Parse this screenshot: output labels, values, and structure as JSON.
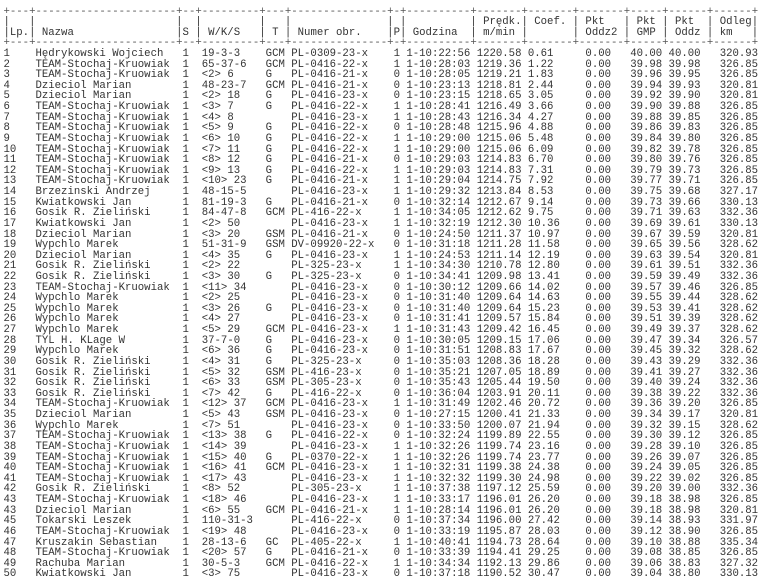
{
  "table": {
    "header_line1": [
      "",
      "",
      "",
      "",
      "",
      "",
      "",
      "",
      "Prędk.",
      "Coef.",
      "Pkt",
      "Pkt",
      "Pkt",
      "Odleg"
    ],
    "header_line2": [
      "Lp.",
      "Nazwa",
      "S",
      "W/K/S",
      "T",
      "Numer obr.",
      "P",
      "Godzina",
      "m/min",
      "",
      "Oddz2",
      "GMP",
      "Oddz",
      "km"
    ],
    "rows": [
      [
        "1",
        "Hędrykowski Wojciech",
        "1",
        "19-3-3",
        "GCM",
        "PL-0309-23-x",
        "1",
        "1-10:22:56",
        "1220.58",
        "0.61",
        "0.00",
        "40.00",
        "40.00",
        "320.93"
      ],
      [
        "2",
        "TEAM-Stochaj-Kruowiak",
        "1",
        "65-37-6",
        "GCM",
        "PL-0416-22-x",
        "1",
        "1-10:28:03",
        "1219.36",
        "1.22",
        "0.00",
        "39.98",
        "39.98",
        "326.85"
      ],
      [
        "3",
        "TEAM-Stochaj-Kruowiak",
        "1",
        "<2> 6",
        "G",
        "PL-0416-21-x",
        "0",
        "1-10:28:05",
        "1219.21",
        "1.83",
        "0.00",
        "39.96",
        "39.95",
        "326.85"
      ],
      [
        "4",
        "Dzieciol Marian",
        "1",
        "48-23-7",
        "GCM",
        "PL-0416-21-x",
        "0",
        "1-10:23:13",
        "1218.81",
        "2.44",
        "0.00",
        "39.94",
        "39.93",
        "320.81"
      ],
      [
        "5",
        "Dzieciol Marian",
        "1",
        "<2> 18",
        "G",
        "PL-0416-23-x",
        "0",
        "1-10:23:15",
        "1218.65",
        "3.05",
        "0.00",
        "39.92",
        "39.90",
        "320.81"
      ],
      [
        "6",
        "TEAM-Stochaj-Kruowiak",
        "1",
        "<3> 7",
        "G",
        "PL-0416-22-x",
        "1",
        "1-10:28:41",
        "1216.49",
        "3.66",
        "0.00",
        "39.90",
        "39.88",
        "326.85"
      ],
      [
        "7",
        "TEAM-Stochaj-Kruowiak",
        "1",
        "<4> 8",
        "",
        "PL-0416-23-x",
        "1",
        "1-10:28:43",
        "1216.34",
        "4.27",
        "0.00",
        "39.88",
        "39.85",
        "326.85"
      ],
      [
        "8",
        "TEAM-Stochaj-Kruowiak",
        "1",
        "<5> 9",
        "G",
        "PL-0416-22-x",
        "0",
        "1-10:28:48",
        "1215.96",
        "4.88",
        "0.00",
        "39.86",
        "39.83",
        "326.85"
      ],
      [
        "9",
        "TEAM-Stochaj-Kruowiak",
        "1",
        "<6> 10",
        "G",
        "PL-0416-22-x",
        "1",
        "1-10:29:00",
        "1215.06",
        "5.48",
        "0.00",
        "39.84",
        "39.80",
        "326.85"
      ],
      [
        "10",
        "TEAM-Stochaj-Kruowiak",
        "1",
        "<7> 11",
        "G",
        "PL-0416-22-x",
        "1",
        "1-10:29:00",
        "1215.06",
        "6.09",
        "0.00",
        "39.82",
        "39.78",
        "326.85"
      ],
      [
        "11",
        "TEAM-Stochaj-Kruowiak",
        "1",
        "<8> 12",
        "G",
        "PL-0416-21-x",
        "0",
        "1-10:29:03",
        "1214.83",
        "6.70",
        "0.00",
        "39.80",
        "39.76",
        "326.85"
      ],
      [
        "12",
        "TEAM-Stochaj-Kruowiak",
        "1",
        "<9> 13",
        "G",
        "PL-0416-22-x",
        "1",
        "1-10:29:03",
        "1214.83",
        "7.31",
        "0.00",
        "39.79",
        "39.73",
        "326.85"
      ],
      [
        "13",
        "TEAM-Stochaj-Kruowiak",
        "1",
        "<10> 23",
        "G",
        "PL-0416-21-x",
        "1",
        "1-10:29:04",
        "1214.75",
        "7.92",
        "0.00",
        "39.77",
        "39.71",
        "326.85"
      ],
      [
        "14",
        "Brzezinski Andrzej",
        "1",
        "48-15-5",
        "",
        "PL-0416-23-x",
        "1",
        "1-10:29:32",
        "1213.84",
        "8.53",
        "0.00",
        "39.75",
        "39.68",
        "327.17"
      ],
      [
        "15",
        "Kwiatkowski Jan",
        "1",
        "81-19-3",
        "G",
        "PL-0416-21-x",
        "0",
        "1-10:32:14",
        "1212.67",
        "9.14",
        "0.00",
        "39.73",
        "39.66",
        "330.13"
      ],
      [
        "16",
        "Gosik R. Zieliński",
        "1",
        "84-47-8",
        "GCM",
        "PL-416-22-x",
        "1",
        "1-10:34:05",
        "1212.62",
        "9.75",
        "0.00",
        "39.71",
        "39.63",
        "332.36"
      ],
      [
        "17",
        "Kwiatkowski Jan",
        "1",
        "<2> 50",
        "",
        "PL-0416-23-x",
        "1",
        "1-10:32:19",
        "1212.30",
        "10.36",
        "0.00",
        "39.69",
        "39.61",
        "330.13"
      ],
      [
        "18",
        "Dzieciol Marian",
        "1",
        "<3> 20",
        "GSM",
        "PL-0416-21-x",
        "0",
        "1-10:24:50",
        "1211.37",
        "10.97",
        "0.00",
        "39.67",
        "39.59",
        "320.81"
      ],
      [
        "19",
        "Wypchlo Marek",
        "1",
        "51-31-9",
        "GSM",
        "DV-09920-22-x",
        "0",
        "1-10:31:18",
        "1211.28",
        "11.58",
        "0.00",
        "39.65",
        "39.56",
        "328.62"
      ],
      [
        "20",
        "Dzieciol Marian",
        "1",
        "<4> 35",
        "G",
        "PL-0416-23-x",
        "1",
        "1-10:24:53",
        "1211.14",
        "12.19",
        "0.00",
        "39.63",
        "39.54",
        "320.81"
      ],
      [
        "21",
        "Gosik R. Zieliński",
        "1",
        "<2> 22",
        "",
        "PL-325-23-x",
        "1",
        "1-10:34:30",
        "1210.78",
        "12.80",
        "0.00",
        "39.61",
        "39.51",
        "332.36"
      ],
      [
        "22",
        "Gosik R. Zieliński",
        "1",
        "<3> 30",
        "G",
        "PL-325-23-x",
        "0",
        "1-10:34:41",
        "1209.98",
        "13.41",
        "0.00",
        "39.59",
        "39.49",
        "332.36"
      ],
      [
        "23",
        "TEAM-Stochaj-Kruowiak",
        "1",
        "<11> 34",
        "",
        "PL-0416-23-x",
        "0",
        "1-10:30:12",
        "1209.66",
        "14.02",
        "0.00",
        "39.57",
        "39.46",
        "326.85"
      ],
      [
        "24",
        "Wypchlo Marek",
        "1",
        "<2> 25",
        "",
        "PL-0416-23-x",
        "0",
        "1-10:31:40",
        "1209.64",
        "14.63",
        "0.00",
        "39.55",
        "39.44",
        "328.62"
      ],
      [
        "25",
        "Wypchlo Marek",
        "1",
        "<3> 26",
        "G",
        "PL-0416-23-x",
        "0",
        "1-10:31:40",
        "1209.64",
        "15.23",
        "0.00",
        "39.53",
        "39.41",
        "328.62"
      ],
      [
        "26",
        "Wypchlo Marek",
        "1",
        "<4> 27",
        "",
        "PL-0416-23-x",
        "0",
        "1-10:31:41",
        "1209.57",
        "15.84",
        "0.00",
        "39.51",
        "39.39",
        "328.62"
      ],
      [
        "27",
        "Wypchlo Marek",
        "1",
        "<5> 29",
        "GCM",
        "PL-0416-23-x",
        "1",
        "1-10:31:43",
        "1209.42",
        "16.45",
        "0.00",
        "39.49",
        "39.37",
        "328.62"
      ],
      [
        "28",
        "TYL H. KLage W",
        "1",
        "37-7-0",
        "G",
        "PL-0416-23-x",
        "0",
        "1-10:30:05",
        "1209.15",
        "17.06",
        "0.00",
        "39.47",
        "39.34",
        "326.57"
      ],
      [
        "29",
        "Wypchlo Marek",
        "1",
        "<6> 36",
        "G",
        "PL-0416-23-x",
        "0",
        "1-10:31:51",
        "1208.83",
        "17.67",
        "0.00",
        "39.45",
        "39.32",
        "328.62"
      ],
      [
        "30",
        "Gosik R. Zieliński",
        "1",
        "<4> 31",
        "G",
        "PL-325-23-x",
        "0",
        "1-10:35:03",
        "1208.36",
        "18.28",
        "0.00",
        "39.43",
        "39.29",
        "332.36"
      ],
      [
        "31",
        "Gosik R. Zieliński",
        "1",
        "<5> 32",
        "GSM",
        "PL-416-23-x",
        "0",
        "1-10:35:21",
        "1207.05",
        "18.89",
        "0.00",
        "39.41",
        "39.27",
        "332.36"
      ],
      [
        "32",
        "Gosik R. Zieliński",
        "1",
        "<6> 33",
        "GSM",
        "PL-305-23-x",
        "0",
        "1-10:35:43",
        "1205.44",
        "19.50",
        "0.00",
        "39.40",
        "39.24",
        "332.36"
      ],
      [
        "33",
        "Gosik R. Zieliński",
        "1",
        "<7> 42",
        "G",
        "PL-416-22-x",
        "0",
        "1-10:36:04",
        "1203.91",
        "20.11",
        "0.00",
        "39.38",
        "39.22",
        "332.36"
      ],
      [
        "34",
        "TEAM-Stochaj-Kruowiak",
        "1",
        "<12> 37",
        "GCM",
        "PL-0416-23-x",
        "1",
        "1-10:31:49",
        "1202.46",
        "20.72",
        "0.00",
        "39.36",
        "39.20",
        "326.85"
      ],
      [
        "35",
        "Dzieciol Marian",
        "1",
        "<5> 43",
        "GSM",
        "PL-0416-23-x",
        "0",
        "1-10:27:15",
        "1200.41",
        "21.33",
        "0.00",
        "39.34",
        "39.17",
        "320.81"
      ],
      [
        "36",
        "Wypchlo Marek",
        "1",
        "<7> 51",
        "",
        "PL-0416-23-x",
        "0",
        "1-10:33:50",
        "1200.07",
        "21.94",
        "0.00",
        "39.32",
        "39.15",
        "328.62"
      ],
      [
        "37",
        "TEAM-Stochaj-Kruowiak",
        "1",
        "<13> 38",
        "G",
        "PL-0416-22-x",
        "0",
        "1-10:32:24",
        "1199.89",
        "22.55",
        "0.00",
        "39.30",
        "39.12",
        "326.85"
      ],
      [
        "38",
        "TEAM-Stochaj-Kruowiak",
        "1",
        "<14> 39",
        "",
        "PL-0416-23-x",
        "1",
        "1-10:32:26",
        "1199.74",
        "23.16",
        "0.00",
        "39.28",
        "39.10",
        "326.85"
      ],
      [
        "39",
        "TEAM-Stochaj-Kruowiak",
        "1",
        "<15> 40",
        "G",
        "PL-0370-22-x",
        "1",
        "1-10:32:26",
        "1199.74",
        "23.77",
        "0.00",
        "39.26",
        "39.07",
        "326.85"
      ],
      [
        "40",
        "TEAM-Stochaj-Kruowiak",
        "1",
        "<16> 41",
        "GCM",
        "PL-0416-23-x",
        "1",
        "1-10:32:31",
        "1199.38",
        "24.38",
        "0.00",
        "39.24",
        "39.05",
        "326.85"
      ],
      [
        "41",
        "TEAM-Stochaj-Kruowiak",
        "1",
        "<17> 43",
        "",
        "PL-0416-23-x",
        "1",
        "1-10:32:32",
        "1199.30",
        "24.98",
        "0.00",
        "39.22",
        "39.02",
        "326.85"
      ],
      [
        "42",
        "Gosik R. Zieliński",
        "1",
        "<8> 52",
        "",
        "PL-305-23-x",
        "1",
        "1-10:37:38",
        "1197.12",
        "25.59",
        "0.00",
        "39.20",
        "39.00",
        "332.36"
      ],
      [
        "43",
        "TEAM-Stochaj-Kruowiak",
        "1",
        "<18> 46",
        "",
        "PL-0416-23-x",
        "1",
        "1-10:33:17",
        "1196.01",
        "26.20",
        "0.00",
        "39.18",
        "38.98",
        "326.85"
      ],
      [
        "43",
        "Dzieciol Marian",
        "1",
        "<6> 55",
        "GCM",
        "PL-0416-21-x",
        "1",
        "1-10:28:14",
        "1196.01",
        "26.20",
        "0.00",
        "39.18",
        "38.98",
        "320.81"
      ],
      [
        "45",
        "Tokarski Leszek",
        "1",
        "110-31-3",
        "",
        "PL-416-22-x",
        "0",
        "1-10:37:34",
        "1196.00",
        "27.42",
        "0.00",
        "39.14",
        "38.93",
        "331.97"
      ],
      [
        "46",
        "TEAM-Stochaj-Kruowiak",
        "1",
        "<19> 48",
        "",
        "PL-0416-23-x",
        "0",
        "1-10:33:19",
        "1195.87",
        "28.03",
        "0.00",
        "39.12",
        "38.90",
        "326.85"
      ],
      [
        "47",
        "Kruszakin Sebastian",
        "1",
        "28-13-6",
        "GC",
        "PL-405-22-x",
        "1",
        "1-10:40:41",
        "1194.73",
        "28.64",
        "0.00",
        "39.10",
        "38.88",
        "335.34"
      ],
      [
        "48",
        "TEAM-Stochaj-Kruowiak",
        "1",
        "<20> 57",
        "G",
        "PL-0416-21-x",
        "0",
        "1-10:33:39",
        "1194.41",
        "29.25",
        "0.00",
        "39.08",
        "38.85",
        "326.85"
      ],
      [
        "49",
        "Rachuba Marian",
        "1",
        "30-5-3",
        "GCM",
        "PL-0416-22-x",
        "1",
        "1-10:34:34",
        "1192.13",
        "29.86",
        "0.00",
        "39.06",
        "38.83",
        "327.32"
      ],
      [
        "50",
        "Kwiatkowski Jan",
        "1",
        "<3> 75",
        "",
        "PL-0416-23-x",
        "0",
        "1-10:37:18",
        "1190.52",
        "30.47",
        "0.00",
        "39.04",
        "38.80",
        "330.13"
      ]
    ]
  }
}
